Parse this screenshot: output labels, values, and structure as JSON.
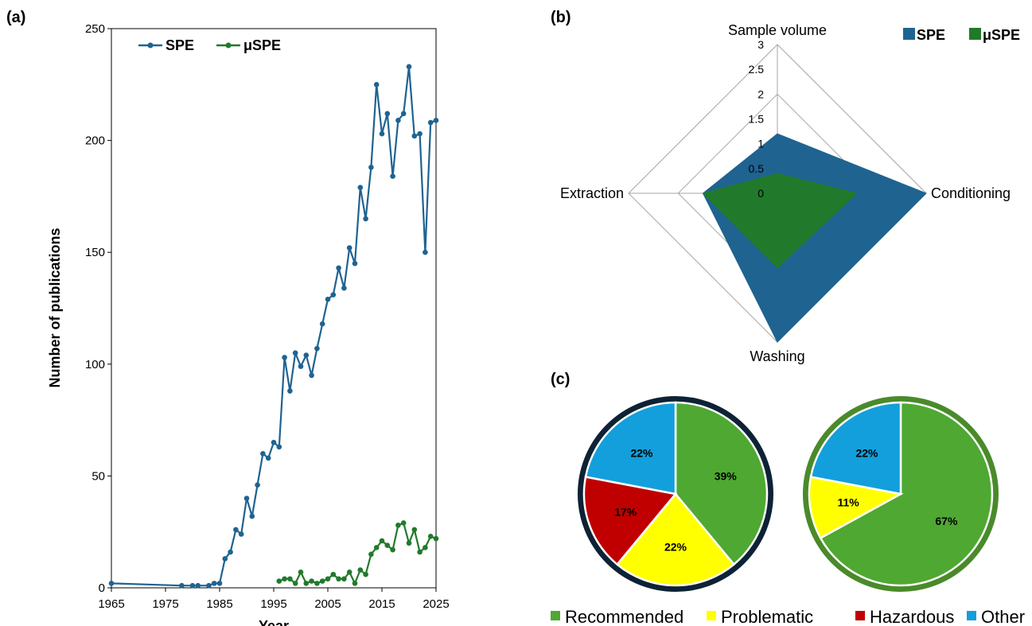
{
  "panels": {
    "a_label": "(a)",
    "b_label": "(b)",
    "c_label": "(c)"
  },
  "chart_data": [
    {
      "type": "line",
      "panel": "(a)",
      "xlabel": "Year",
      "ylabel": "Number of publications",
      "xlim": [
        1965,
        2025
      ],
      "ylim": [
        0,
        250
      ],
      "x_ticks": [
        1965,
        1975,
        1985,
        1995,
        2005,
        2015,
        2025
      ],
      "y_ticks": [
        0,
        50,
        100,
        150,
        200,
        250
      ],
      "legend_position": "top-left",
      "series": [
        {
          "name": "SPE",
          "color": "#1f6391",
          "points": [
            [
              1965,
              2
            ],
            [
              1978,
              1
            ],
            [
              1980,
              1
            ],
            [
              1981,
              1
            ],
            [
              1983,
              1
            ],
            [
              1984,
              2
            ],
            [
              1985,
              2
            ],
            [
              1986,
              13
            ],
            [
              1987,
              16
            ],
            [
              1988,
              26
            ],
            [
              1989,
              24
            ],
            [
              1990,
              40
            ],
            [
              1991,
              32
            ],
            [
              1992,
              46
            ],
            [
              1993,
              60
            ],
            [
              1994,
              58
            ],
            [
              1995,
              65
            ],
            [
              1996,
              63
            ],
            [
              1997,
              103
            ],
            [
              1998,
              88
            ],
            [
              1999,
              105
            ],
            [
              2000,
              99
            ],
            [
              2001,
              104
            ],
            [
              2002,
              95
            ],
            [
              2003,
              107
            ],
            [
              2004,
              118
            ],
            [
              2005,
              129
            ],
            [
              2006,
              131
            ],
            [
              2007,
              143
            ],
            [
              2008,
              134
            ],
            [
              2009,
              152
            ],
            [
              2010,
              145
            ],
            [
              2011,
              179
            ],
            [
              2012,
              165
            ],
            [
              2013,
              188
            ],
            [
              2014,
              225
            ],
            [
              2015,
              203
            ],
            [
              2016,
              212
            ],
            [
              2017,
              184
            ],
            [
              2018,
              209
            ],
            [
              2019,
              212
            ],
            [
              2020,
              233
            ],
            [
              2021,
              202
            ],
            [
              2022,
              203
            ],
            [
              2023,
              150
            ],
            [
              2024,
              208
            ],
            [
              2025,
              209
            ]
          ]
        },
        {
          "name": "μSPE",
          "color": "#217a2b",
          "points": [
            [
              1996,
              3
            ],
            [
              1997,
              4
            ],
            [
              1998,
              4
            ],
            [
              1999,
              2
            ],
            [
              2000,
              7
            ],
            [
              2001,
              2
            ],
            [
              2002,
              3
            ],
            [
              2003,
              2
            ],
            [
              2004,
              3
            ],
            [
              2005,
              4
            ],
            [
              2006,
              6
            ],
            [
              2007,
              4
            ],
            [
              2008,
              4
            ],
            [
              2009,
              7
            ],
            [
              2010,
              2
            ],
            [
              2011,
              8
            ],
            [
              2012,
              6
            ],
            [
              2013,
              15
            ],
            [
              2014,
              18
            ],
            [
              2015,
              21
            ],
            [
              2016,
              19
            ],
            [
              2017,
              17
            ],
            [
              2018,
              28
            ],
            [
              2019,
              29
            ],
            [
              2020,
              20
            ],
            [
              2021,
              26
            ],
            [
              2022,
              16
            ],
            [
              2023,
              18
            ],
            [
              2024,
              23
            ],
            [
              2025,
              22
            ]
          ]
        }
      ]
    },
    {
      "type": "radar",
      "panel": "(b)",
      "axes": [
        "Sample volume",
        "Conditioning",
        "Washing",
        "Extraction"
      ],
      "r_range": [
        0,
        3
      ],
      "r_ticks": [
        "0",
        "0.5",
        "1",
        "1.5",
        "2",
        "2.5",
        "3"
      ],
      "legend_position": "top-right",
      "series": [
        {
          "name": "SPE",
          "color": "#1f6391",
          "values": [
            1.2,
            3.0,
            3.0,
            1.5
          ]
        },
        {
          "name": "μSPE",
          "color": "#217a2b",
          "values": [
            0.4,
            1.6,
            1.5,
            1.5
          ]
        }
      ]
    },
    {
      "type": "pie",
      "panel": "(c)",
      "categories": [
        "Recommended",
        "Problematic",
        "Hazardous",
        "Other"
      ],
      "colors": [
        "#4ea832",
        "#ffff00",
        "#c00000",
        "#139fdc"
      ],
      "pies": [
        {
          "border_color": "#0d2235",
          "values": [
            39,
            22,
            17,
            22
          ],
          "labels": [
            "39%",
            "22%",
            "17%",
            "22%"
          ]
        },
        {
          "border_color": "#4a8a2a",
          "values": [
            67,
            11,
            0,
            22
          ],
          "labels": [
            "67%",
            "11%",
            "",
            "22%"
          ]
        }
      ],
      "legend_position": "bottom"
    }
  ]
}
